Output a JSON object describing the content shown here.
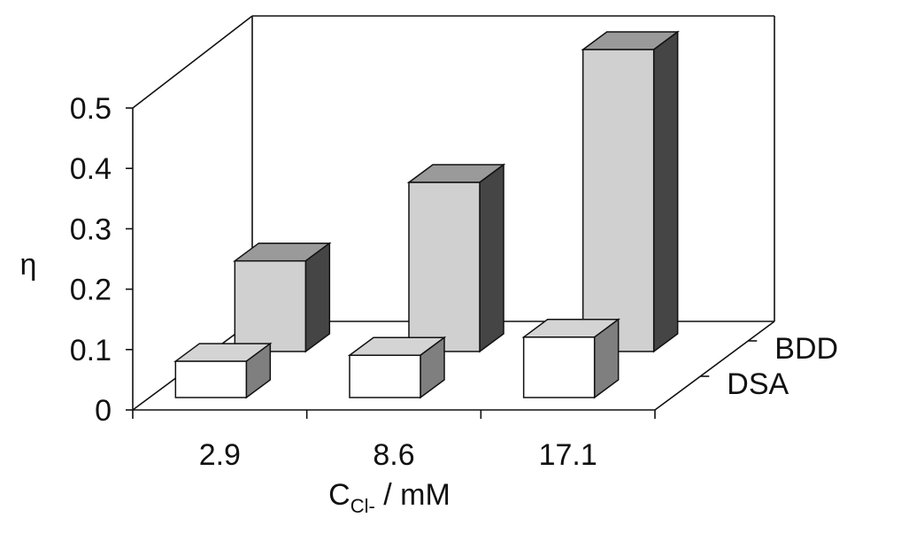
{
  "chart_data": {
    "type": "bar",
    "style": "3d-depth",
    "categories": [
      "2.9",
      "8.6",
      "17.1"
    ],
    "series": [
      {
        "name": "DSA",
        "values": [
          0.06,
          0.07,
          0.1
        ],
        "color": "#ffffff",
        "side_color": "#7f7f7f",
        "top_color": "#d4d4d4"
      },
      {
        "name": "BDD",
        "values": [
          0.15,
          0.28,
          0.5
        ],
        "color": "#d0d0d0",
        "side_color": "#454545",
        "top_color": "#9a9a9a"
      }
    ],
    "ylabel": "η",
    "xlabel": {
      "main": "C",
      "subscript": "Cl-",
      "unit": " / mM"
    },
    "ylim": [
      0,
      0.5
    ],
    "yticks": [
      "0",
      "0.1",
      "0.2",
      "0.3",
      "0.4",
      "0.5"
    ],
    "grid": false
  }
}
